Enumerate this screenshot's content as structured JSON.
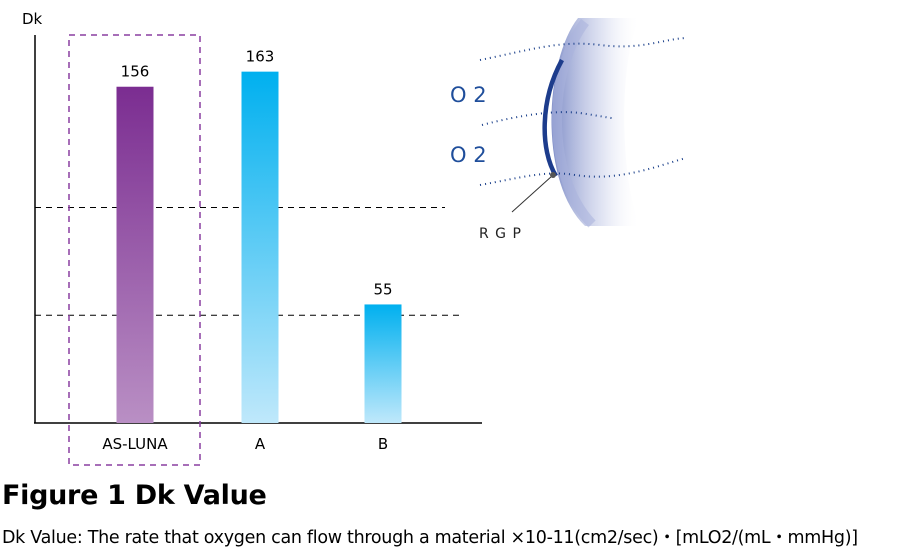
{
  "chart_data": {
    "type": "bar",
    "ylabel": "Dk",
    "categories": [
      "AS-LUNA",
      "A",
      "B"
    ],
    "values": [
      156,
      163,
      55
    ],
    "data_labels": [
      "156",
      "163",
      "55"
    ],
    "highlighted_category": "AS-LUNA",
    "ylim": [
      0,
      180
    ],
    "reference_lines": [
      100,
      50
    ],
    "grid": false,
    "series_colors": {
      "highlight": {
        "top": "#7b2d91",
        "bottom": "#b98fc4"
      },
      "other": {
        "top": "#00b0ef",
        "bottom": "#bfe8fb"
      }
    }
  },
  "illustration": {
    "labels": [
      "O 2",
      "O 2"
    ],
    "lens_label": "R G P",
    "text_color": "#1f4e9b",
    "dot_color": "#1a3f8a"
  },
  "figure": {
    "title": "Figure 1 Dk Value",
    "caption": "Dk Value: The rate that oxygen can flow through a material  ×10-11(cm2/sec)・[mLO2/(mL・mmHg)]"
  }
}
